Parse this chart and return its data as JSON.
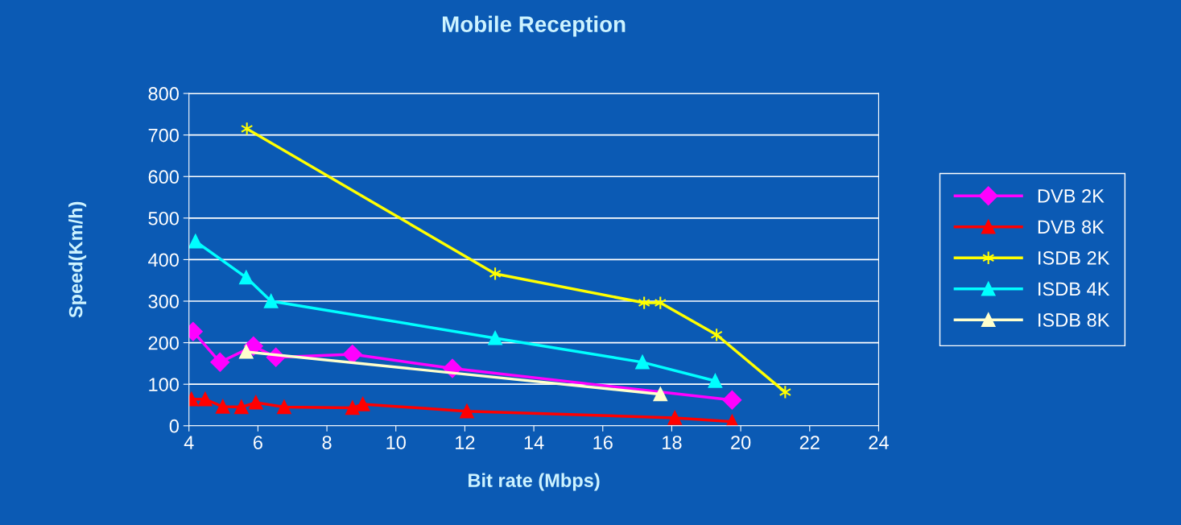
{
  "chart_data": {
    "type": "line",
    "title": "Mobile Reception",
    "xlabel": "Bit rate (Mbps)",
    "ylabel": "Speed(Km/h)",
    "xlim": [
      4,
      24
    ],
    "xticks": [
      4,
      6,
      8,
      10,
      12,
      14,
      16,
      18,
      20,
      22,
      24
    ],
    "ylim": [
      0,
      800
    ],
    "yticks": [
      0,
      100,
      200,
      300,
      400,
      500,
      600,
      700,
      800
    ],
    "grid": "y",
    "legend": "right",
    "series": [
      {
        "name": "DVB 2K",
        "color": "#ff00ff",
        "marker": "diamond",
        "x": [
          4.12,
          4.9,
          5.87,
          6.52,
          8.74,
          11.64,
          19.75
        ],
        "values": [
          227,
          153,
          192,
          165,
          172,
          138,
          62
        ]
      },
      {
        "name": "DVB 8K",
        "color": "#ff0000",
        "marker": "triangle",
        "x": [
          4.07,
          4.47,
          4.98,
          5.52,
          5.94,
          6.76,
          8.74,
          9.04,
          12.06,
          18.09,
          19.75
        ],
        "values": [
          64,
          64,
          46,
          45,
          56,
          45,
          43,
          52,
          35,
          19,
          10
        ]
      },
      {
        "name": "ISDB 2K",
        "color": "#ffff00",
        "marker": "cross",
        "x": [
          5.68,
          12.88,
          17.2,
          17.67,
          19.3,
          21.29
        ],
        "values": [
          715,
          366,
          296,
          296,
          219,
          81
        ]
      },
      {
        "name": "ISDB 4K",
        "color": "#00ffff",
        "marker": "triangle",
        "x": [
          4.19,
          5.66,
          6.38,
          12.88,
          17.15,
          19.26
        ],
        "values": [
          444,
          357,
          300,
          211,
          153,
          108
        ]
      },
      {
        "name": "ISDB 8K",
        "color": "#ffffcc",
        "marker": "triangle",
        "x": [
          5.66,
          17.67
        ],
        "values": [
          178,
          76
        ]
      }
    ]
  }
}
